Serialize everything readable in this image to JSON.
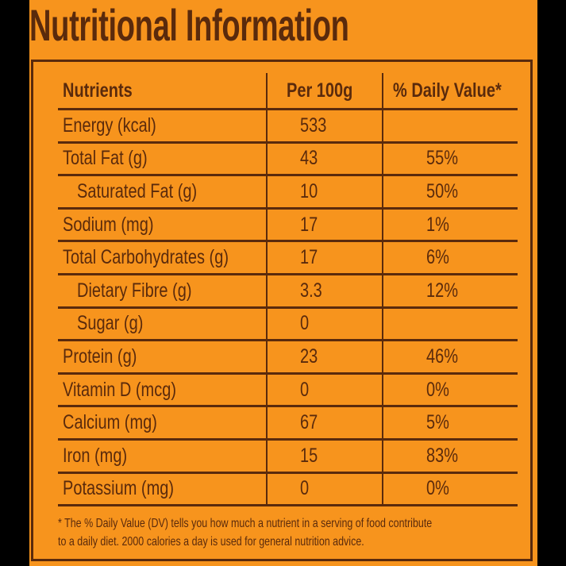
{
  "title": "Nutritional Information",
  "colors": {
    "background": "#f7941d",
    "text": "#5a2a0c"
  },
  "table": {
    "headers": [
      "Nutrients",
      "Per 100g",
      "% Daily Value*"
    ],
    "rows": [
      {
        "nutrient": "Energy (kcal)",
        "per100g": "533",
        "dv": "",
        "indent": false
      },
      {
        "nutrient": "Total Fat (g)",
        "per100g": "43",
        "dv": "55%",
        "indent": false
      },
      {
        "nutrient": "Saturated Fat (g)",
        "per100g": "10",
        "dv": "50%",
        "indent": true
      },
      {
        "nutrient": "Sodium (mg)",
        "per100g": "17",
        "dv": "1%",
        "indent": false
      },
      {
        "nutrient": "Total Carbohydrates (g)",
        "per100g": "17",
        "dv": "6%",
        "indent": false
      },
      {
        "nutrient": "Dietary Fibre (g)",
        "per100g": "3.3",
        "dv": "12%",
        "indent": true
      },
      {
        "nutrient": "Sugar (g)",
        "per100g": "0",
        "dv": "",
        "indent": true
      },
      {
        "nutrient": "Protein (g)",
        "per100g": "23",
        "dv": "46%",
        "indent": false
      },
      {
        "nutrient": "Vitamin D (mcg)",
        "per100g": "0",
        "dv": "0%",
        "indent": false
      },
      {
        "nutrient": "Calcium (mg)",
        "per100g": "67",
        "dv": "5%",
        "indent": false
      },
      {
        "nutrient": "Iron (mg)",
        "per100g": "15",
        "dv": "83%",
        "indent": false
      },
      {
        "nutrient": "Potassium (mg)",
        "per100g": "0",
        "dv": "0%",
        "indent": false
      }
    ]
  },
  "footnote": {
    "line1": "* The % Daily Value (DV) tells you how much a nutrient in a serving of food contribute",
    "line2": "to a daily diet. 2000 calories a day is used for general nutrition advice."
  }
}
